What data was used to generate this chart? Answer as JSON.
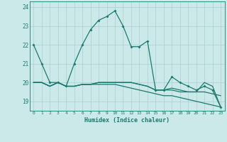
{
  "xlabel": "Humidex (Indice chaleur)",
  "x": [
    0,
    1,
    2,
    3,
    4,
    5,
    6,
    7,
    8,
    9,
    10,
    11,
    12,
    13,
    14,
    15,
    16,
    17,
    18,
    19,
    20,
    21,
    22,
    23
  ],
  "line1": [
    22.0,
    21.0,
    20.0,
    20.0,
    19.8,
    21.0,
    22.0,
    22.8,
    23.3,
    23.5,
    23.8,
    23.0,
    21.9,
    21.9,
    22.2,
    19.6,
    19.6,
    20.3,
    20.0,
    19.8,
    19.6,
    19.8,
    19.6,
    18.7
  ],
  "line2": [
    20.0,
    20.0,
    19.8,
    20.0,
    19.8,
    19.8,
    19.9,
    19.9,
    20.0,
    20.0,
    20.0,
    20.0,
    20.0,
    19.9,
    19.8,
    19.6,
    19.6,
    19.7,
    19.6,
    19.5,
    19.5,
    20.0,
    19.8,
    18.7
  ],
  "line3": [
    20.0,
    20.0,
    19.8,
    20.0,
    19.8,
    19.8,
    19.9,
    19.9,
    20.0,
    20.0,
    20.0,
    20.0,
    20.0,
    19.9,
    19.8,
    19.6,
    19.6,
    19.6,
    19.5,
    19.5,
    19.5,
    19.5,
    19.4,
    19.3
  ],
  "line4": [
    20.0,
    20.0,
    19.8,
    20.0,
    19.8,
    19.8,
    19.9,
    19.9,
    19.9,
    19.9,
    19.9,
    19.8,
    19.7,
    19.6,
    19.5,
    19.4,
    19.3,
    19.3,
    19.2,
    19.1,
    19.0,
    18.9,
    18.8,
    18.7
  ],
  "ylim": [
    18.5,
    24.3
  ],
  "yticks": [
    19,
    20,
    21,
    22,
    23,
    24
  ],
  "line_color": "#1a7a6e",
  "bg_color": "#cce9e9",
  "grid_color": "#aacfcf",
  "grid_minor_color": "#c0dede"
}
